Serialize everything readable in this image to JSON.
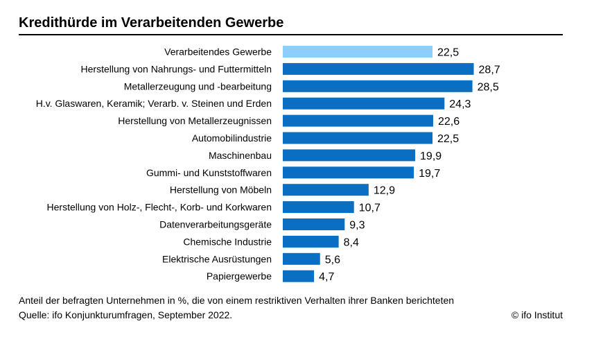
{
  "title": "Kredithürde im Verarbeitenden Gewerbe",
  "note": "Anteil der befragten Unternehmen in %, die von einem restriktiven Verhalten ihrer Banken berichteten",
  "source": "Quelle: ifo Konjunkturumfragen, September 2022.",
  "copyright": "© ifo Institut",
  "colors": {
    "highlight": "#8ccfff",
    "bar": "#0a6fc2"
  },
  "chart_data": {
    "type": "bar",
    "orientation": "horizontal",
    "title": "Kredithürde im Verarbeitenden Gewerbe",
    "xlabel": "",
    "ylabel": "",
    "xlim": [
      0,
      30
    ],
    "categories": [
      "Verarbeitendes Gewerbe",
      "Herstellung von Nahrungs- und Futtermitteln",
      "Metallerzeugung und -bearbeitung",
      "H.v. Glaswaren, Keramik; Verarb. v. Steinen und Erden",
      "Herstellung von Metallerzeugnissen",
      "Automobilindustrie",
      "Maschinenbau",
      "Gummi- und Kunststoffwaren",
      "Herstellung von Möbeln",
      "Herstellung von Holz-, Flecht-, Korb- und Korkwaren",
      "Datenverarbeitungsgeräte",
      "Chemische Industrie",
      "Elektrische Ausrüstungen",
      "Papiergewerbe"
    ],
    "values": [
      22.5,
      28.7,
      28.5,
      24.3,
      22.6,
      22.5,
      19.9,
      19.7,
      12.9,
      10.7,
      9.3,
      8.4,
      5.6,
      4.7
    ],
    "value_labels": [
      "22,5",
      "28,7",
      "28,5",
      "24,3",
      "22,6",
      "22,5",
      "19,9",
      "19,7",
      "12,9",
      "10,7",
      "9,3",
      "8,4",
      "5,6",
      "4,7"
    ],
    "highlight_index": 0
  }
}
